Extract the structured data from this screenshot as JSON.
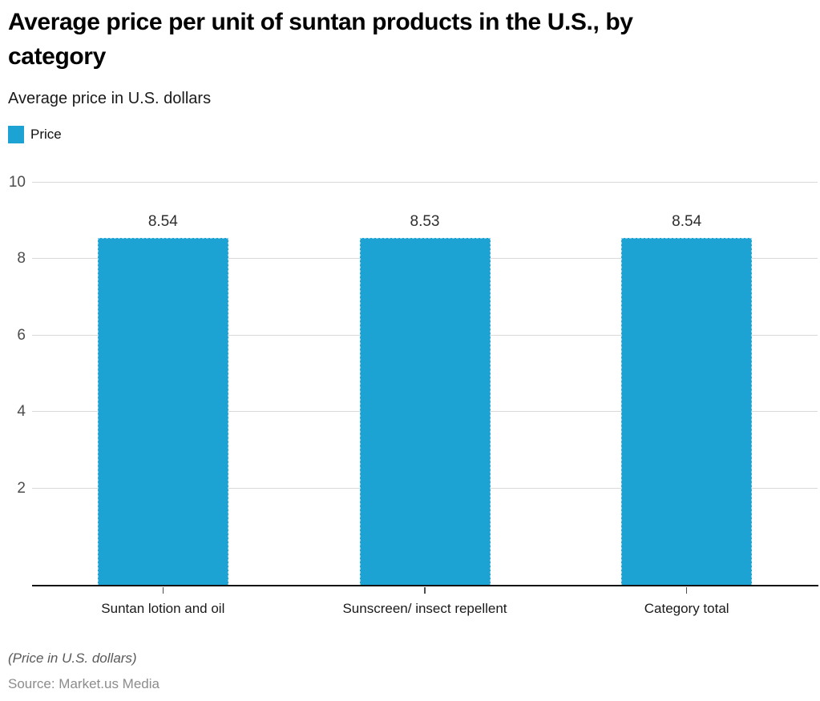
{
  "header": {
    "title_line1": "Average price per unit of suntan products in the U.S., by",
    "title_line2": "category",
    "subtitle": "Average price in U.S. dollars"
  },
  "chart_data": {
    "type": "bar",
    "title": "Average price per unit of suntan products in the U.S., by category",
    "subtitle": "Average price in U.S. dollars",
    "categories": [
      "Suntan lotion and oil",
      "Sunscreen/ insect repellent",
      "Category total"
    ],
    "series": [
      {
        "name": "Price",
        "values": [
          8.54,
          8.53,
          8.54
        ]
      }
    ],
    "value_labels": [
      "8.54",
      "8.53",
      "8.54"
    ],
    "xlabel": "",
    "ylabel": "Average price in U.S. dollars",
    "ylim": [
      0,
      10
    ],
    "yticks": [
      2,
      4,
      6,
      8,
      10
    ],
    "grid": true,
    "legend_position": "top-left"
  },
  "footer": {
    "note": "(Price in U.S. dollars)",
    "source": "Source: Market.us Media"
  },
  "colors": {
    "bar": "#1ca2d3",
    "bar_edge_dash": "#8ed2ec",
    "grid": "#d9d9d9",
    "axis": "#141414",
    "ytick_label": "#4d4d4d",
    "value_label": "#2e2e2e",
    "category_label": "#1a1a1a",
    "x_tick": "#4d4d4d",
    "note": "#595959",
    "source": "#8c8c8c"
  }
}
